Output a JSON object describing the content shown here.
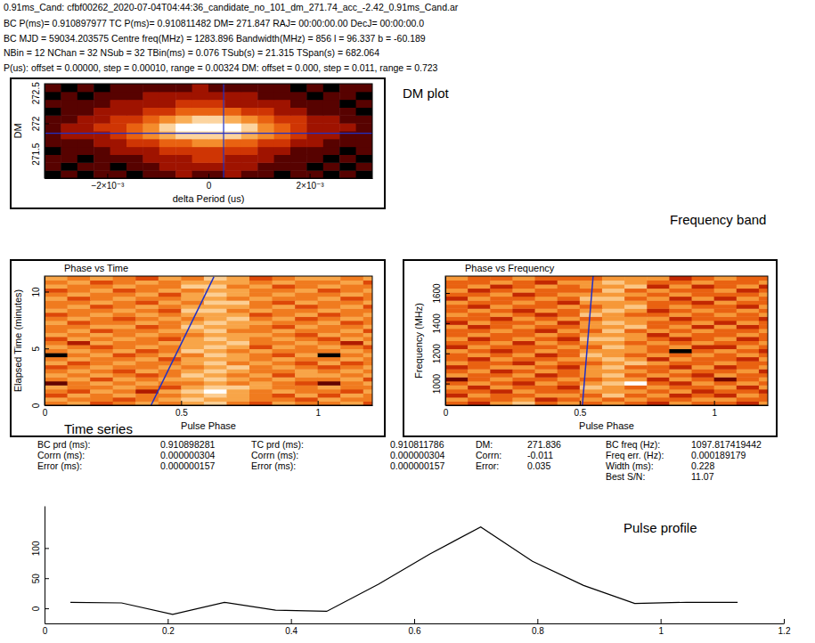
{
  "header": [
    "0.91ms_Cand: cfbf00262_2020-07-04T04:44:36_candidate_no_101_dm_271.74_acc_-2.42_0.91ms_Cand.ar",
    "BC P(ms)= 0.910897977 TC P(ms)= 0.910811482 DM= 271.847 RAJ= 00:00:00.00 DecJ= 00:00:00.0",
    "BC MJD = 59034.203575 Centre freq(MHz) = 1283.896 Bandwidth(MHz) = 856 l = 96.337 b = -60.189",
    "NBin = 12 NChan = 32 NSub = 32 TBin(ms) = 0.076 TSub(s) = 21.315 TSpan(s) = 682.064",
    "P(us): offset = 0.00000, step = 0.00010, range = 0.00324 DM: offset = 0.000, step = 0.011, range = 0.723"
  ],
  "annotations": [
    "DM plot",
    "Frequency band",
    "Time series",
    "Pulse profile"
  ],
  "stats": {
    "columns": [
      [
        [
          "BC prd (ms):",
          "0.910898281"
        ],
        [
          "Corrn (ms):",
          "0.000000304"
        ],
        [
          "Error (ms):",
          "0.000000157"
        ]
      ],
      [
        [
          "TC prd (ms):",
          "0.910811786"
        ],
        [
          "Corrn (ms):",
          "0.000000304"
        ],
        [
          "Error (ms):",
          "0.000000157"
        ]
      ],
      [
        [
          "DM:",
          "271.836"
        ],
        [
          "Corrn:",
          "-0.011"
        ],
        [
          "Error:",
          "0.035"
        ]
      ],
      [
        [
          "BC freq (Hz):",
          "1097.817419442"
        ],
        [
          "Freq err. (Hz):",
          "0.000189179"
        ],
        [
          "Width (ms):",
          "0.228"
        ],
        [
          "Best S/N:",
          "11.07"
        ]
      ]
    ]
  },
  "chart_data": [
    {
      "type": "heatmap",
      "x_label": "delta Period (us)",
      "y_label": "DM",
      "xlim": [
        -0.00324,
        0.00324
      ],
      "ylim": [
        271.1,
        272.65
      ],
      "xticks": [
        {
          "value": -0.002,
          "label": "−2×10⁻³"
        },
        0,
        {
          "value": 0.002,
          "label": "2×10⁻³"
        }
      ],
      "yticks": [
        271.5,
        272,
        272.5
      ],
      "bins": [
        -0.00324,
        -0.002916,
        -0.002592,
        -0.002268,
        -0.001944,
        -0.00162,
        -0.001296,
        -0.000972,
        -0.000648,
        -0.000324,
        0,
        0.000324,
        0.000648,
        0.000972,
        0.001296,
        0.00162,
        0.001944,
        0.002268,
        0.002592,
        0.002916,
        0.00324
      ],
      "crosshair": {
        "x": 0.0003,
        "y": 271.836,
        "color": "#1f30c8"
      },
      "cells": [
        [
          1,
          2,
          1,
          2,
          2,
          1,
          2,
          2,
          3,
          2,
          2,
          3,
          2,
          2,
          1,
          2,
          2,
          1,
          2,
          1
        ],
        [
          2,
          1,
          2,
          2,
          1,
          2,
          2,
          3,
          3,
          3,
          3,
          3,
          3,
          2,
          2,
          2,
          1,
          2,
          1,
          2
        ],
        [
          2,
          2,
          1,
          2,
          2,
          2,
          3,
          3,
          3,
          4,
          4,
          3,
          3,
          3,
          2,
          2,
          2,
          1,
          2,
          1
        ],
        [
          1,
          2,
          2,
          2,
          3,
          3,
          3,
          4,
          4,
          4,
          4,
          4,
          4,
          3,
          3,
          2,
          2,
          2,
          1,
          2
        ],
        [
          2,
          2,
          2,
          3,
          3,
          4,
          4,
          5,
          5,
          6,
          6,
          5,
          5,
          4,
          4,
          3,
          3,
          2,
          2,
          2
        ],
        [
          2,
          3,
          3,
          3,
          4,
          5,
          6,
          7,
          8,
          8,
          8,
          8,
          7,
          6,
          5,
          4,
          3,
          3,
          2,
          2
        ],
        [
          2,
          3,
          3,
          4,
          4,
          5,
          6,
          8,
          9,
          9,
          9,
          9,
          8,
          6,
          5,
          4,
          3,
          3,
          3,
          2
        ],
        [
          2,
          2,
          3,
          3,
          4,
          4,
          5,
          6,
          7,
          8,
          8,
          7,
          6,
          5,
          4,
          4,
          3,
          3,
          2,
          2
        ],
        [
          1,
          2,
          2,
          3,
          3,
          3,
          4,
          4,
          5,
          5,
          5,
          5,
          4,
          4,
          3,
          3,
          2,
          2,
          2,
          1
        ],
        [
          2,
          2,
          2,
          2,
          3,
          3,
          3,
          3,
          4,
          4,
          4,
          3,
          3,
          3,
          3,
          2,
          2,
          2,
          1,
          2
        ],
        [
          1,
          2,
          1,
          2,
          2,
          2,
          3,
          3,
          3,
          3,
          3,
          3,
          3,
          2,
          2,
          2,
          1,
          2,
          2,
          1
        ],
        [
          2,
          1,
          2,
          1,
          2,
          2,
          2,
          2,
          2,
          3,
          2,
          2,
          2,
          2,
          2,
          1,
          2,
          1,
          2,
          2
        ]
      ]
    },
    {
      "type": "heatmap",
      "title": "Phase vs Time",
      "x_label": "Pulse Phase",
      "y_label": "Elapsed Time (minutes)",
      "xlim": [
        0,
        1.2
      ],
      "ylim": [
        0,
        11.37
      ],
      "xticks": [
        0,
        0.5,
        1
      ],
      "yticks": [
        0,
        5,
        10
      ],
      "bins": [
        0,
        0.0833,
        0.1667,
        0.25,
        0.3333,
        0.4167,
        0.5,
        0.5833,
        0.6667,
        0.75,
        0.8333,
        0.9167,
        1
      ],
      "fit_line": {
        "x": [
          0.39,
          0.62
        ],
        "y": [
          0,
          11.3
        ],
        "color": "#1f30c8"
      },
      "cells": [
        [
          5,
          6,
          4,
          5,
          6,
          5,
          6,
          7,
          5,
          4,
          6,
          5
        ],
        [
          6,
          5,
          5,
          4,
          5,
          6,
          7,
          6,
          6,
          5,
          5,
          4
        ],
        [
          4,
          6,
          5,
          6,
          5,
          5,
          6,
          7,
          6,
          5,
          4,
          6
        ],
        [
          5,
          4,
          6,
          5,
          3,
          6,
          7,
          8,
          6,
          5,
          6,
          5
        ],
        [
          6,
          5,
          5,
          6,
          5,
          4,
          6,
          7,
          7,
          6,
          5,
          5
        ],
        [
          2,
          5,
          6,
          5,
          6,
          5,
          5,
          6,
          5,
          6,
          5,
          4
        ],
        [
          5,
          6,
          4,
          6,
          5,
          6,
          6,
          7,
          6,
          5,
          6,
          5
        ],
        [
          6,
          5,
          6,
          5,
          4,
          5,
          7,
          6,
          5,
          6,
          4,
          6
        ],
        [
          5,
          6,
          5,
          4,
          6,
          5,
          6,
          7,
          6,
          5,
          5,
          6
        ],
        [
          4,
          5,
          6,
          5,
          5,
          6,
          5,
          6,
          7,
          5,
          6,
          5
        ],
        [
          6,
          4,
          5,
          6,
          5,
          5,
          6,
          7,
          5,
          6,
          5,
          4
        ],
        [
          5,
          6,
          5,
          5,
          6,
          4,
          6,
          6,
          6,
          5,
          6,
          5
        ],
        [
          1,
          5,
          6,
          4,
          5,
          6,
          5,
          7,
          6,
          5,
          4,
          6
        ],
        [
          5,
          6,
          5,
          6,
          4,
          5,
          7,
          6,
          5,
          6,
          5,
          5
        ],
        [
          6,
          5,
          4,
          5,
          6,
          5,
          6,
          7,
          6,
          4,
          6,
          5
        ],
        [
          5,
          3,
          6,
          5,
          5,
          6,
          6,
          6,
          7,
          5,
          5,
          6
        ],
        [
          4,
          6,
          5,
          6,
          5,
          4,
          6,
          7,
          6,
          5,
          6,
          5
        ],
        [
          6,
          5,
          6,
          5,
          6,
          5,
          5,
          6,
          6,
          6,
          5,
          4
        ],
        [
          5,
          6,
          4,
          5,
          5,
          6,
          6,
          7,
          5,
          5,
          6,
          5
        ],
        [
          5,
          5,
          6,
          6,
          4,
          5,
          7,
          6,
          6,
          5,
          4,
          6
        ],
        [
          6,
          4,
          5,
          5,
          6,
          5,
          6,
          7,
          6,
          6,
          5,
          5
        ],
        [
          5,
          6,
          5,
          4,
          5,
          6,
          5,
          6,
          7,
          5,
          6,
          4
        ],
        [
          4,
          5,
          6,
          5,
          6,
          5,
          6,
          6,
          6,
          4,
          5,
          6
        ],
        [
          6,
          5,
          5,
          6,
          5,
          4,
          7,
          7,
          5,
          6,
          5,
          5
        ],
        [
          5,
          6,
          4,
          5,
          6,
          5,
          6,
          6,
          6,
          5,
          6,
          4
        ],
        [
          5,
          5,
          6,
          5,
          4,
          6,
          5,
          7,
          7,
          5,
          4,
          6
        ],
        [
          6,
          4,
          5,
          6,
          5,
          5,
          6,
          6,
          5,
          6,
          5,
          5
        ],
        [
          5,
          6,
          5,
          5,
          6,
          4,
          6,
          7,
          6,
          5,
          6,
          5
        ],
        [
          4,
          5,
          6,
          4,
          5,
          6,
          5,
          6,
          6,
          5,
          5,
          6
        ],
        [
          6,
          5,
          5,
          6,
          5,
          5,
          7,
          7,
          5,
          6,
          4,
          5
        ],
        [
          5,
          6,
          4,
          5,
          6,
          5,
          6,
          6,
          6,
          5,
          6,
          5
        ],
        [
          6,
          5,
          6,
          5,
          4,
          6,
          5,
          7,
          6,
          4,
          5,
          6
        ]
      ]
    },
    {
      "type": "heatmap",
      "title": "Phase vs Frequency",
      "x_label": "Pulse Phase",
      "y_label": "Frequency (MHz)",
      "xlim": [
        0,
        1.2
      ],
      "ylim": [
        856,
        1712
      ],
      "xticks": [
        0,
        0.5,
        1
      ],
      "yticks": [
        1000,
        1200,
        1400,
        1600
      ],
      "bins": [
        0,
        0.0833,
        0.1667,
        0.25,
        0.3333,
        0.4167,
        0.5,
        0.5833,
        0.6667,
        0.75,
        0.8333,
        0.9167,
        1
      ],
      "fit_line": {
        "x": [
          0.51,
          0.55
        ],
        "y": [
          856,
          1712
        ],
        "color": "#1f30c8"
      },
      "cells": [
        [
          5,
          4,
          6,
          7,
          5,
          6,
          5,
          6,
          5,
          4,
          6,
          5
        ],
        [
          6,
          5,
          5,
          6,
          4,
          5,
          6,
          5,
          6,
          5,
          5,
          6
        ],
        [
          4,
          6,
          5,
          5,
          6,
          6,
          5,
          7,
          5,
          6,
          4,
          5
        ],
        [
          5,
          5,
          4,
          6,
          5,
          5,
          6,
          6,
          6,
          5,
          6,
          4
        ],
        [
          6,
          4,
          6,
          5,
          5,
          4,
          7,
          6,
          5,
          6,
          5,
          5
        ],
        [
          5,
          6,
          5,
          4,
          6,
          5,
          6,
          7,
          8,
          5,
          4,
          6
        ],
        [
          3,
          5,
          6,
          5,
          5,
          6,
          5,
          6,
          6,
          4,
          6,
          5
        ],
        [
          6,
          5,
          5,
          6,
          4,
          5,
          6,
          7,
          5,
          6,
          5,
          4
        ],
        [
          5,
          6,
          4,
          5,
          6,
          5,
          6,
          6,
          6,
          5,
          6,
          5
        ],
        [
          4,
          5,
          6,
          6,
          5,
          4,
          6,
          7,
          5,
          5,
          4,
          6
        ],
        [
          6,
          5,
          5,
          4,
          6,
          5,
          5,
          6,
          7,
          6,
          5,
          5
        ],
        [
          5,
          4,
          6,
          5,
          5,
          6,
          6,
          7,
          6,
          4,
          6,
          5
        ],
        [
          5,
          6,
          5,
          6,
          4,
          5,
          7,
          6,
          5,
          6,
          5,
          6
        ],
        [
          6,
          5,
          4,
          5,
          6,
          5,
          6,
          6,
          6,
          5,
          2,
          5
        ],
        [
          4,
          6,
          5,
          5,
          5,
          6,
          5,
          7,
          6,
          5,
          6,
          4
        ],
        [
          5,
          5,
          6,
          4,
          6,
          5,
          6,
          6,
          5,
          6,
          5,
          6
        ],
        [
          6,
          4,
          5,
          6,
          5,
          4,
          7,
          7,
          6,
          5,
          4,
          5
        ],
        [
          5,
          6,
          5,
          5,
          6,
          5,
          6,
          6,
          6,
          4,
          6,
          5
        ],
        [
          5,
          5,
          6,
          5,
          4,
          6,
          5,
          7,
          5,
          6,
          5,
          6
        ],
        [
          6,
          4,
          5,
          6,
          5,
          5,
          6,
          6,
          7,
          5,
          6,
          4
        ],
        [
          4,
          6,
          5,
          5,
          6,
          4,
          6,
          7,
          6,
          5,
          5,
          6
        ],
        [
          5,
          5,
          4,
          6,
          5,
          6,
          5,
          6,
          6,
          6,
          4,
          5
        ],
        [
          6,
          5,
          6,
          5,
          4,
          5,
          7,
          6,
          5,
          5,
          6,
          5
        ],
        [
          5,
          6,
          5,
          4,
          6,
          5,
          6,
          7,
          6,
          4,
          5,
          6
        ],
        [
          5,
          4,
          6,
          5,
          5,
          6,
          5,
          6,
          7,
          5,
          6,
          5
        ],
        [
          6,
          5,
          5,
          6,
          5,
          4,
          6,
          6,
          6,
          5,
          5,
          4
        ],
        [
          4,
          6,
          5,
          5,
          6,
          5,
          7,
          7,
          5,
          6,
          4,
          6
        ],
        [
          5,
          5,
          6,
          4,
          5,
          6,
          6,
          6,
          6,
          5,
          6,
          5
        ],
        [
          6,
          4,
          5,
          6,
          5,
          5,
          5,
          7,
          5,
          6,
          5,
          5
        ],
        [
          5,
          6,
          4,
          5,
          6,
          5,
          6,
          6,
          7,
          4,
          6,
          4
        ],
        [
          5,
          5,
          6,
          5,
          4,
          6,
          6,
          7,
          6,
          5,
          5,
          6
        ],
        [
          6,
          5,
          5,
          6,
          5,
          5,
          5,
          6,
          6,
          6,
          4,
          5
        ]
      ]
    },
    {
      "type": "line",
      "color": "#000000",
      "xlim": [
        0,
        1.2
      ],
      "ylim": [
        -25,
        170
      ],
      "xticks": [
        0,
        0.2,
        0.4,
        0.6,
        0.8,
        1,
        1.2
      ],
      "yticks": [
        0,
        50,
        100
      ],
      "x": [
        0.042,
        0.125,
        0.208,
        0.292,
        0.375,
        0.458,
        0.542,
        0.625,
        0.708,
        0.792,
        0.875,
        0.958,
        1.042,
        1.125
      ],
      "values": [
        10,
        9,
        -10,
        10,
        -3,
        -5,
        40,
        90,
        135,
        78,
        38,
        8,
        10,
        10
      ]
    }
  ]
}
